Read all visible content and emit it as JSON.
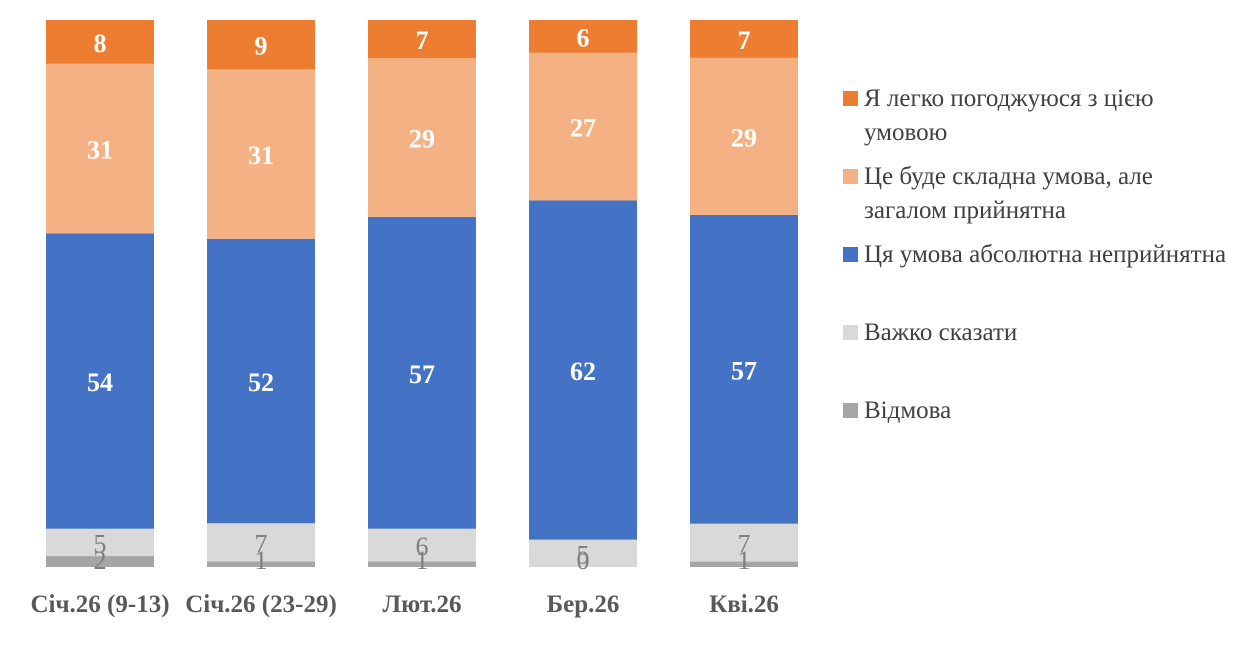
{
  "chart_data": {
    "type": "bar",
    "stacked": true,
    "categories": [
      "Січ.26 (9-13)",
      "Січ.26 (23-29)",
      "Лют.26",
      "Бер.26",
      "Кві.26"
    ],
    "series": [
      {
        "name": "Відмова",
        "color": "#A5A5A5",
        "values": [
          2,
          1,
          1,
          0,
          1
        ]
      },
      {
        "name": "Важко сказати",
        "color": "#D9D9D9",
        "values": [
          5,
          7,
          6,
          5,
          7
        ]
      },
      {
        "name": "Ця умова абсолютна неприйнятна",
        "color": "#4472C4",
        "values": [
          54,
          52,
          57,
          62,
          57
        ]
      },
      {
        "name": "Це буде складна умова, але загалом прийнятна",
        "color": "#F4B183",
        "values": [
          31,
          31,
          29,
          27,
          29
        ]
      },
      {
        "name": "Я легко погоджуюся з цією умовою",
        "color": "#ED7D31",
        "values": [
          8,
          9,
          7,
          6,
          7
        ]
      }
    ],
    "legend_position": "right",
    "grid": false
  }
}
